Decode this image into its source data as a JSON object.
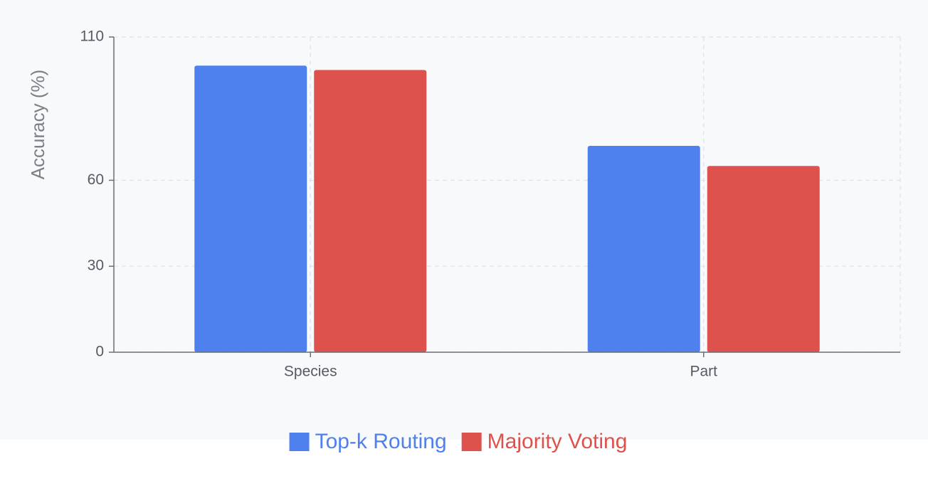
{
  "chart_data": {
    "type": "bar",
    "y_label": "Accuracy (%)",
    "categories": [
      "Species",
      "Part"
    ],
    "series": [
      {
        "name": "Top-k Routing",
        "color": "#4e81ee",
        "values": [
          100,
          72
        ]
      },
      {
        "name": "Majority Voting",
        "color": "#dd524c",
        "values": [
          98.5,
          65
        ]
      }
    ],
    "ylim": [
      0,
      110
    ],
    "yticks": [
      0,
      30,
      60,
      110
    ],
    "grid": true,
    "legend": "bottom"
  }
}
